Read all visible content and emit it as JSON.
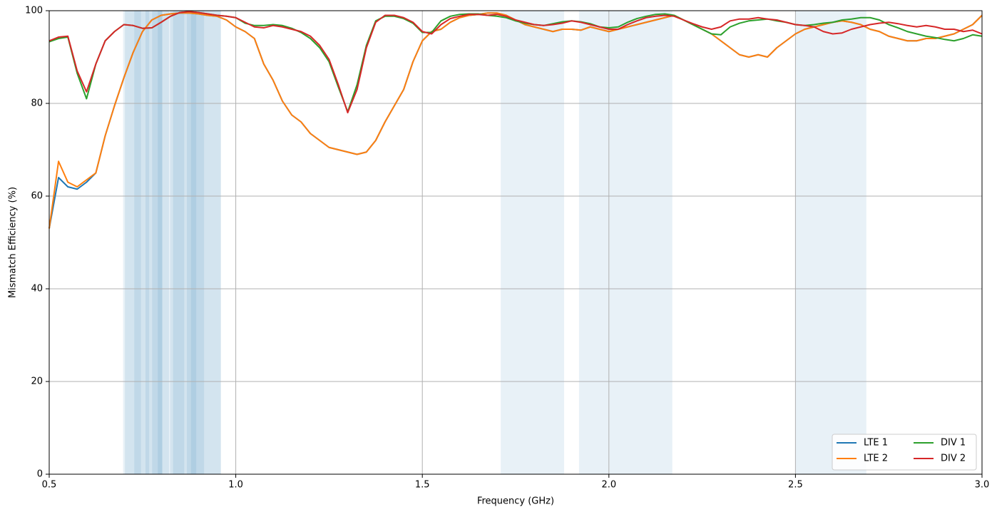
{
  "chart_data": {
    "type": "line",
    "xlabel": "Frequency (GHz)",
    "ylabel": "Mismatch Efficiency (%)",
    "x": [
      0.5,
      0.525,
      0.55,
      0.575,
      0.6,
      0.625,
      0.65,
      0.675,
      0.7,
      0.725,
      0.75,
      0.775,
      0.8,
      0.825,
      0.85,
      0.875,
      0.9,
      0.925,
      0.95,
      0.975,
      1.0,
      1.025,
      1.05,
      1.075,
      1.1,
      1.125,
      1.15,
      1.175,
      1.2,
      1.225,
      1.25,
      1.275,
      1.3,
      1.325,
      1.35,
      1.375,
      1.4,
      1.425,
      1.45,
      1.475,
      1.5,
      1.525,
      1.55,
      1.575,
      1.6,
      1.625,
      1.65,
      1.675,
      1.7,
      1.725,
      1.75,
      1.775,
      1.8,
      1.825,
      1.85,
      1.875,
      1.9,
      1.925,
      1.95,
      1.975,
      2.0,
      2.025,
      2.05,
      2.075,
      2.1,
      2.125,
      2.15,
      2.175,
      2.2,
      2.225,
      2.25,
      2.275,
      2.3,
      2.325,
      2.35,
      2.375,
      2.4,
      2.425,
      2.45,
      2.475,
      2.5,
      2.525,
      2.55,
      2.575,
      2.6,
      2.625,
      2.65,
      2.675,
      2.7,
      2.725,
      2.75,
      2.775,
      2.8,
      2.825,
      2.85,
      2.875,
      2.9,
      2.925,
      2.95,
      2.975,
      3.0
    ],
    "series": [
      {
        "name": "LTE 1",
        "color": "#1f77b4",
        "values": [
          53,
          64,
          62,
          61.5,
          63,
          65,
          73,
          79.5,
          85.5,
          91,
          95.5,
          98,
          99,
          99.3,
          99.5,
          99.5,
          99.3,
          99,
          98.8,
          98,
          96.5,
          95.5,
          94,
          88.5,
          85,
          80.5,
          77.5,
          76,
          73.5,
          72,
          70.5,
          70,
          69.5,
          69,
          69.5,
          72,
          76,
          79.5,
          83,
          89,
          93.5,
          95.5,
          96,
          97.5,
          98.5,
          99,
          99.2,
          99.5,
          99.5,
          99,
          98,
          97,
          96.5,
          96,
          95.5,
          96,
          96,
          95.8,
          96.5,
          96,
          95.5,
          96,
          96.5,
          97,
          97.5,
          98,
          98.5,
          99,
          98,
          97,
          96,
          95,
          93.5,
          92,
          90.5,
          90,
          90.5,
          90,
          92,
          93.5,
          95,
          96,
          96.5,
          97,
          97.5,
          97.8,
          97.5,
          97,
          96,
          95.5,
          94.5,
          94,
          93.5,
          93.5,
          94,
          94,
          94.5,
          95,
          96,
          97,
          99
        ]
      },
      {
        "name": "LTE 2",
        "color": "#ff7f0e",
        "values": [
          53,
          67.5,
          63,
          62,
          63.5,
          65,
          73,
          79.5,
          85.5,
          91,
          95.5,
          98,
          99,
          99.3,
          99.5,
          99.5,
          99.3,
          99,
          98.8,
          98,
          96.5,
          95.5,
          94,
          88.5,
          85,
          80.5,
          77.5,
          76,
          73.5,
          72,
          70.5,
          70,
          69.5,
          69,
          69.5,
          72,
          76,
          79.5,
          83,
          89,
          93.5,
          95.5,
          96,
          97.5,
          98.5,
          99,
          99.2,
          99.5,
          99.5,
          99,
          98,
          97,
          96.5,
          96,
          95.5,
          96,
          96,
          95.8,
          96.5,
          96,
          95.5,
          96,
          96.5,
          97,
          97.5,
          98,
          98.5,
          99,
          98,
          97,
          96,
          95,
          93.5,
          92,
          90.5,
          90,
          90.5,
          90,
          92,
          93.5,
          95,
          96,
          96.5,
          97,
          97.5,
          97.8,
          97.5,
          97,
          96,
          95.5,
          94.5,
          94,
          93.5,
          93.5,
          94,
          94,
          94.5,
          95,
          96,
          97,
          99
        ]
      },
      {
        "name": "DIV 1",
        "color": "#2ca02c",
        "values": [
          93.3,
          94,
          94.3,
          86.5,
          81,
          88.5,
          93.5,
          95.5,
          97,
          96.8,
          96.2,
          96.3,
          97.5,
          98.8,
          99.6,
          99.8,
          99.6,
          99.3,
          99,
          98.8,
          98.5,
          97.3,
          96.8,
          96.8,
          97,
          96.8,
          96.2,
          95.3,
          94,
          92,
          89,
          83.5,
          78.2,
          84,
          92.5,
          97.8,
          98.8,
          98.8,
          98.3,
          97.3,
          95.3,
          95.3,
          97.8,
          98.8,
          99.2,
          99.3,
          99.3,
          99,
          98.8,
          98.5,
          97.8,
          97.3,
          97,
          96.8,
          97.2,
          97.6,
          97.8,
          97.6,
          97.2,
          96.5,
          96.3,
          96.5,
          97.5,
          98.3,
          98.8,
          99.2,
          99.3,
          99,
          98,
          97,
          96,
          95,
          94.8,
          96.5,
          97.3,
          97.8,
          98,
          98.2,
          97.8,
          97.5,
          97,
          96.8,
          97,
          97.3,
          97.5,
          98,
          98.2,
          98.5,
          98.5,
          98,
          97,
          96.3,
          95.5,
          95,
          94.5,
          94.2,
          93.8,
          93.5,
          94,
          94.8,
          94.5
        ]
      },
      {
        "name": "DIV 2",
        "color": "#d62728",
        "values": [
          93.5,
          94.3,
          94.5,
          87,
          82.5,
          88.5,
          93.5,
          95.5,
          97,
          96.8,
          96.2,
          96.3,
          97.5,
          98.8,
          99.6,
          99.8,
          99.6,
          99.3,
          99,
          98.8,
          98.5,
          97.5,
          96.5,
          96.3,
          96.8,
          96.5,
          96,
          95.5,
          94.5,
          92.5,
          89.5,
          84,
          78,
          83,
          92,
          97.5,
          99,
          99,
          98.5,
          97.5,
          95.5,
          95,
          97,
          98.3,
          98.8,
          99.2,
          99.2,
          99,
          99.2,
          98.8,
          98,
          97.5,
          97,
          96.8,
          97,
          97.3,
          97.8,
          97.5,
          97,
          96.5,
          96,
          96,
          97,
          97.8,
          98.5,
          98.8,
          99,
          98.8,
          98,
          97.2,
          96.5,
          96,
          96.5,
          97.8,
          98.2,
          98.2,
          98.5,
          98.2,
          98,
          97.5,
          97,
          96.8,
          96.5,
          95.5,
          95,
          95.2,
          96,
          96.5,
          97,
          97.3,
          97.5,
          97.2,
          96.8,
          96.5,
          96.8,
          96.5,
          96,
          96,
          95.5,
          95.8,
          95
        ]
      }
    ],
    "shaded_bands": [
      [
        0.698,
        0.746
      ],
      [
        0.703,
        0.803
      ],
      [
        0.728,
        0.768
      ],
      [
        0.758,
        0.803
      ],
      [
        0.776,
        0.821
      ],
      [
        0.791,
        0.862
      ],
      [
        0.824,
        0.894
      ],
      [
        0.832,
        0.915
      ],
      [
        0.869,
        0.96
      ],
      [
        0.88,
        0.96
      ],
      [
        1.71,
        1.88
      ],
      [
        1.92,
        2.17
      ],
      [
        2.5,
        2.69
      ]
    ],
    "shaded_color": "#1f77b4",
    "xlim": [
      0.5,
      3.0
    ],
    "xticks": [
      0.5,
      {
        "value": 1,
        "label": "1.0"
      },
      1.5,
      {
        "value": 2,
        "label": "2.0"
      },
      2.5,
      {
        "value": 3,
        "label": "3.0"
      }
    ],
    "ylim": [
      0,
      100
    ],
    "yticks": [
      0,
      20,
      40,
      60,
      80,
      100
    ],
    "grid": true,
    "legend": "lower right"
  }
}
